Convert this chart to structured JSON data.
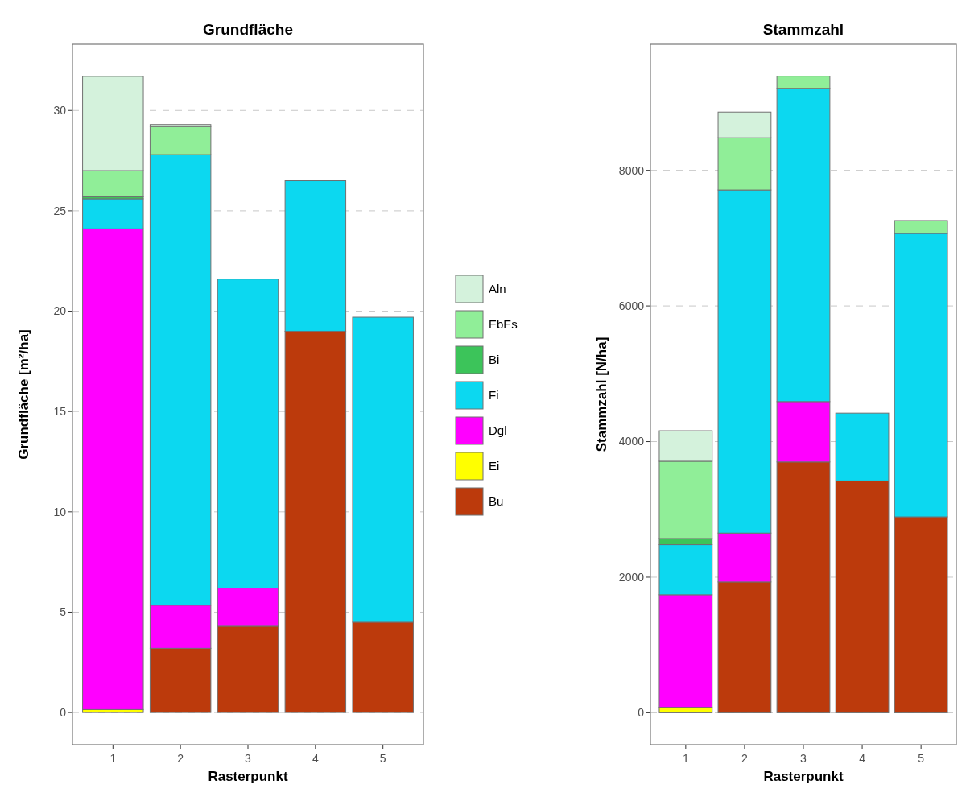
{
  "chart_data": [
    {
      "type": "bar",
      "title": "Grundfläche",
      "xlabel": "Rasterpunkt",
      "ylabel": "Grundfläche [m²/ha]",
      "categories": [
        "1",
        "2",
        "3",
        "4",
        "5"
      ],
      "stacked": true,
      "ylim": [
        -1.6,
        33.3
      ],
      "yticks": [
        0,
        5,
        10,
        15,
        20,
        25,
        30
      ],
      "grid": "y",
      "legend": "right",
      "series": [
        {
          "name": "Bu",
          "color": "#bc3a0c",
          "values": [
            null,
            3.2,
            4.3,
            19.0,
            4.5
          ]
        },
        {
          "name": "Ei",
          "color": "#ffff00",
          "values": [
            0.15,
            null,
            null,
            null,
            null
          ]
        },
        {
          "name": "Dgl",
          "color": "#ff00ff",
          "values": [
            23.95,
            2.15,
            1.9,
            null,
            null
          ]
        },
        {
          "name": "Fi",
          "color": "#0cd8f0",
          "values": [
            1.5,
            22.45,
            15.4,
            7.5,
            15.2
          ]
        },
        {
          "name": "Bi",
          "color": "#3cc45a",
          "values": [
            0.1,
            null,
            null,
            null,
            null
          ]
        },
        {
          "name": "EbEs",
          "color": "#90ee98",
          "values": [
            1.3,
            1.4,
            null,
            null,
            null
          ]
        },
        {
          "name": "Aln",
          "color": "#d4f2dc",
          "values": [
            4.7,
            0.1,
            null,
            null,
            null
          ]
        }
      ]
    },
    {
      "type": "bar",
      "title": "Stammzahl",
      "xlabel": "Rasterpunkt",
      "ylabel": "Stammzahl [N/ha]",
      "categories": [
        "1",
        "2",
        "3",
        "4",
        "5"
      ],
      "stacked": true,
      "ylim": [
        -470,
        9860
      ],
      "yticks": [
        0,
        2000,
        4000,
        6000,
        8000
      ],
      "grid": "y",
      "series": [
        {
          "color": "#bc3a0c",
          "values": [
            null,
            1930,
            3700,
            3420,
            2890
          ]
        },
        {
          "color": "#ffff00",
          "values": [
            80,
            null,
            null,
            null,
            null
          ]
        },
        {
          "color": "#ff00ff",
          "values": [
            1660,
            720,
            890,
            null,
            null
          ]
        },
        {
          "color": "#0cd8f0",
          "values": [
            740,
            5060,
            4620,
            1000,
            4180
          ]
        },
        {
          "color": "#3cc45a",
          "values": [
            90,
            null,
            null,
            null,
            null
          ]
        },
        {
          "color": "#90ee98",
          "values": [
            1140,
            770,
            180,
            null,
            190
          ]
        },
        {
          "color": "#d4f2dc",
          "values": [
            450,
            380,
            null,
            null,
            null
          ]
        }
      ]
    }
  ]
}
